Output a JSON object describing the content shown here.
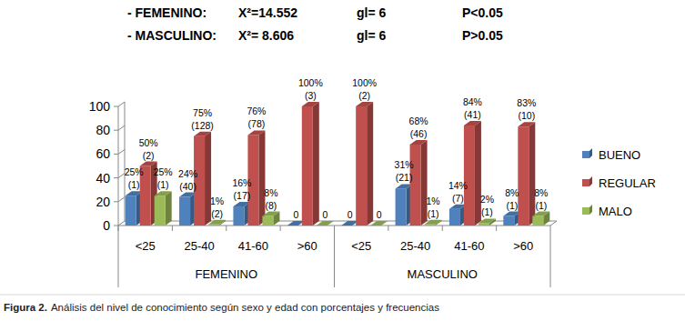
{
  "chart_data": {
    "type": "bar",
    "annotations": [
      [
        "- FEMENINO:",
        "X²=14.552",
        "gl= 6",
        "P<0.05"
      ],
      [
        "- MASCULINO:",
        "X²= 8.606",
        "gl= 6",
        "P>0.05"
      ]
    ],
    "categories": [
      "<25",
      "25-40",
      "41-60",
      ">60",
      "<25",
      "25-40",
      "41-60",
      ">60"
    ],
    "category_groups": [
      "FEMENINO",
      "FEMENINO",
      "FEMENINO",
      "FEMENINO",
      "MASCULINO",
      "MASCULINO",
      "MASCULINO",
      "MASCULINO"
    ],
    "series": [
      {
        "name": "BUENO",
        "color": "#4f81bd",
        "values": [
          25,
          24,
          16,
          0,
          0,
          31,
          14,
          8
        ],
        "value_labels": [
          "25%",
          "24%",
          "16%",
          "0",
          "0",
          "31%",
          "14%",
          "8%"
        ],
        "frequencies": [
          1,
          40,
          17,
          null,
          null,
          21,
          7,
          1
        ],
        "frequency_labels": [
          "(1)",
          "(40)",
          "(17)",
          null,
          null,
          "(21)",
          "(7)",
          "(1)"
        ]
      },
      {
        "name": "REGULAR",
        "color": "#c0504d",
        "values": [
          50,
          75,
          76,
          100,
          100,
          68,
          84,
          83
        ],
        "value_labels": [
          "50%",
          "75%",
          "76%",
          "100%",
          "100%",
          "68%",
          "84%",
          "83%"
        ],
        "frequencies": [
          2,
          128,
          78,
          3,
          2,
          46,
          41,
          10
        ],
        "frequency_labels": [
          "(2)",
          "(128)",
          "(78)",
          "(3)",
          "(2)",
          "(46)",
          "(41)",
          "(10)"
        ]
      },
      {
        "name": "MALO",
        "color": "#9bbb59",
        "values": [
          25,
          1,
          8,
          0,
          0,
          1,
          2,
          8
        ],
        "value_labels": [
          "25%",
          "1%",
          "8%",
          "0",
          "0",
          "1%",
          "2%",
          "8%"
        ],
        "frequencies": [
          1,
          2,
          8,
          null,
          null,
          1,
          1,
          1
        ],
        "frequency_labels": [
          "(1)",
          "(2)",
          "(8)",
          null,
          null,
          "(1)",
          "(1)",
          "(1)"
        ]
      }
    ],
    "ylim": [
      0,
      100
    ],
    "yticks": [
      0,
      20,
      40,
      60,
      80,
      100
    ],
    "grid": false,
    "legend": "right",
    "data_labels": true,
    "caption_label": "Figura 2.",
    "caption": "Análisis del nivel de conocimiento según sexo y edad con porcentajes y frecuencias"
  }
}
